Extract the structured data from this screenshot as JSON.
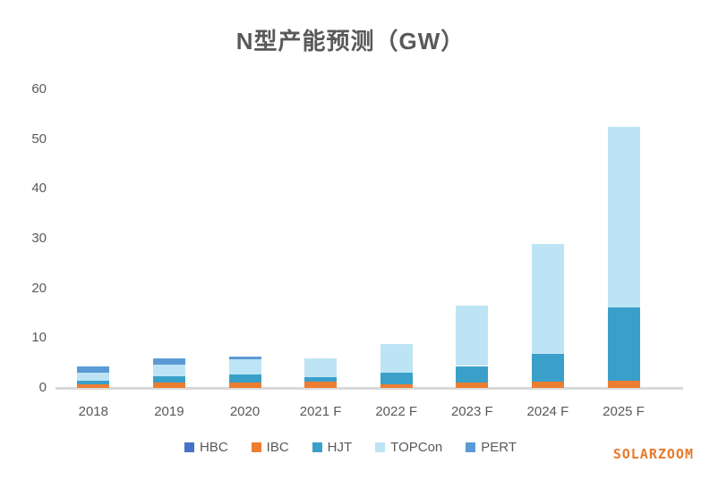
{
  "title": "N型产能预测（GW）",
  "watermark": {
    "text": "SOLARZOOM",
    "color": "#E8792A"
  },
  "axis_color": "#d9d9d9",
  "text_color": "#595959",
  "chart_data": {
    "type": "bar",
    "stacked": true,
    "title": "N型产能预测（GW）",
    "categories": [
      "2018",
      "2019",
      "2020",
      "2021 F",
      "2022 F",
      "2023 F",
      "2024 F",
      "2025 F"
    ],
    "series": [
      {
        "name": "HBC",
        "color": "#4472C4",
        "values": [
          0,
          0,
          0,
          0,
          0,
          0,
          0,
          0
        ]
      },
      {
        "name": "IBC",
        "color": "#ED7D31",
        "values": [
          0.8,
          1.0,
          1.0,
          1.3,
          0.8,
          1.0,
          1.2,
          1.4
        ]
      },
      {
        "name": "HJT",
        "color": "#3AA0C9",
        "values": [
          0.7,
          1.3,
          1.7,
          0.8,
          2.3,
          3.4,
          5.7,
          14.7
        ]
      },
      {
        "name": "TOPCon",
        "color": "#BDE4F5",
        "values": [
          1.5,
          2.3,
          3.0,
          3.8,
          5.7,
          12.2,
          22.1,
          36.4
        ]
      },
      {
        "name": "PERT",
        "color": "#5B9BD5",
        "values": [
          1.3,
          1.3,
          0.6,
          0,
          0,
          0,
          0,
          0
        ]
      }
    ],
    "totals": [
      4.3,
      5.9,
      6.3,
      5.9,
      8.8,
      16.6,
      29.0,
      52.5
    ],
    "xlabel": "",
    "ylabel": "",
    "ylim": [
      0,
      60
    ],
    "yticks": [
      0,
      10,
      20,
      30,
      40,
      50,
      60
    ],
    "grid": false,
    "legend_position": "bottom"
  }
}
